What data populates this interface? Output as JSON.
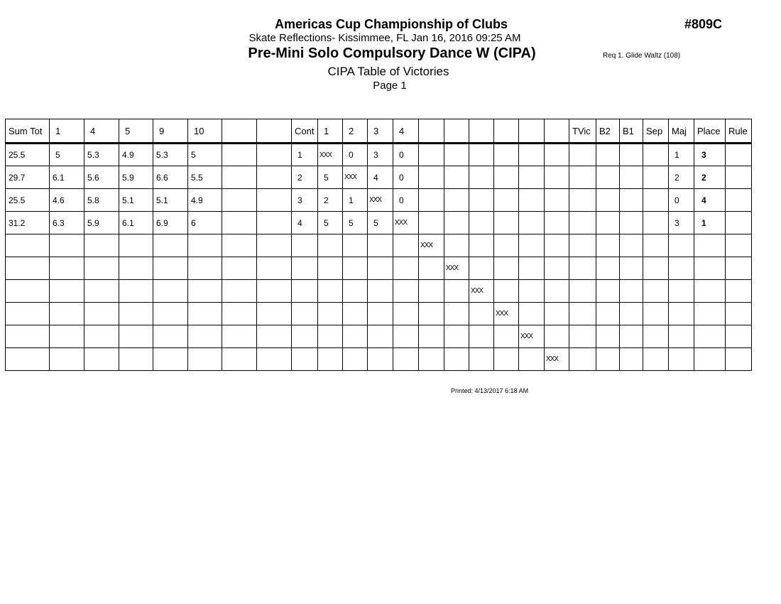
{
  "header": {
    "title": "Americas Cup Championship of Clubs",
    "event_number": "#809C",
    "subtitle": "Skate Reflections- Kissimmee, FL  Jan 16, 2016  09:25 AM",
    "event_name": "Pre-Mini Solo Compulsory Dance W (CIPA)",
    "requirement": "Req  1.  Glide Waltz (108)",
    "table_title": "CIPA Table of Victories",
    "page": "Page 1"
  },
  "table": {
    "columns": [
      "Sum Tot",
      "1",
      "4",
      "5",
      "9",
      "10",
      "",
      "",
      "Cont",
      "1",
      "2",
      "3",
      "4",
      "",
      "",
      "",
      "",
      "",
      "",
      "TVic",
      "B2",
      "B1",
      "Sep",
      "Maj",
      "Place",
      "Rule"
    ],
    "rows": [
      [
        "25.5",
        "5",
        "5.3",
        "4.9",
        "5.3",
        "5",
        "",
        "",
        "1",
        "XXX",
        "0",
        "3",
        "0",
        "",
        "",
        "",
        "",
        "",
        "",
        "",
        "",
        "",
        "",
        "1",
        "3",
        ""
      ],
      [
        "29.7",
        "6.1",
        "5.6",
        "5.9",
        "6.6",
        "5.5",
        "",
        "",
        "2",
        "5",
        "XXX",
        "4",
        "0",
        "",
        "",
        "",
        "",
        "",
        "",
        "",
        "",
        "",
        "",
        "2",
        "2",
        ""
      ],
      [
        "25.5",
        "4.6",
        "5.8",
        "5.1",
        "5.1",
        "4.9",
        "",
        "",
        "3",
        "2",
        "1",
        "XXX",
        "0",
        "",
        "",
        "",
        "",
        "",
        "",
        "",
        "",
        "",
        "",
        "0",
        "4",
        ""
      ],
      [
        "31.2",
        "6.3",
        "5.9",
        "6.1",
        "6.9",
        "6",
        "",
        "",
        "4",
        "5",
        "5",
        "5",
        "XXX",
        "",
        "",
        "",
        "",
        "",
        "",
        "",
        "",
        "",
        "",
        "3",
        "1",
        ""
      ],
      [
        "",
        "",
        "",
        "",
        "",
        "",
        "",
        "",
        "",
        "",
        "",
        "",
        "",
        "XXX",
        "",
        "",
        "",
        "",
        "",
        "",
        "",
        "",
        "",
        "",
        "",
        ""
      ],
      [
        "",
        "",
        "",
        "",
        "",
        "",
        "",
        "",
        "",
        "",
        "",
        "",
        "",
        "",
        "XXX",
        "",
        "",
        "",
        "",
        "",
        "",
        "",
        "",
        "",
        "",
        ""
      ],
      [
        "",
        "",
        "",
        "",
        "",
        "",
        "",
        "",
        "",
        "",
        "",
        "",
        "",
        "",
        "",
        "XXX",
        "",
        "",
        "",
        "",
        "",
        "",
        "",
        "",
        "",
        ""
      ],
      [
        "",
        "",
        "",
        "",
        "",
        "",
        "",
        "",
        "",
        "",
        "",
        "",
        "",
        "",
        "",
        "",
        "XXX",
        "",
        "",
        "",
        "",
        "",
        "",
        "",
        "",
        ""
      ],
      [
        "",
        "",
        "",
        "",
        "",
        "",
        "",
        "",
        "",
        "",
        "",
        "",
        "",
        "",
        "",
        "",
        "",
        "XXX",
        "",
        "",
        "",
        "",
        "",
        "",
        "",
        ""
      ],
      [
        "",
        "",
        "",
        "",
        "",
        "",
        "",
        "",
        "",
        "",
        "",
        "",
        "",
        "",
        "",
        "",
        "",
        "",
        "XXX",
        "",
        "",
        "",
        "",
        "",
        "",
        ""
      ]
    ]
  },
  "footer": {
    "printed": "Printed:  4/13/2017  6:18 AM"
  }
}
